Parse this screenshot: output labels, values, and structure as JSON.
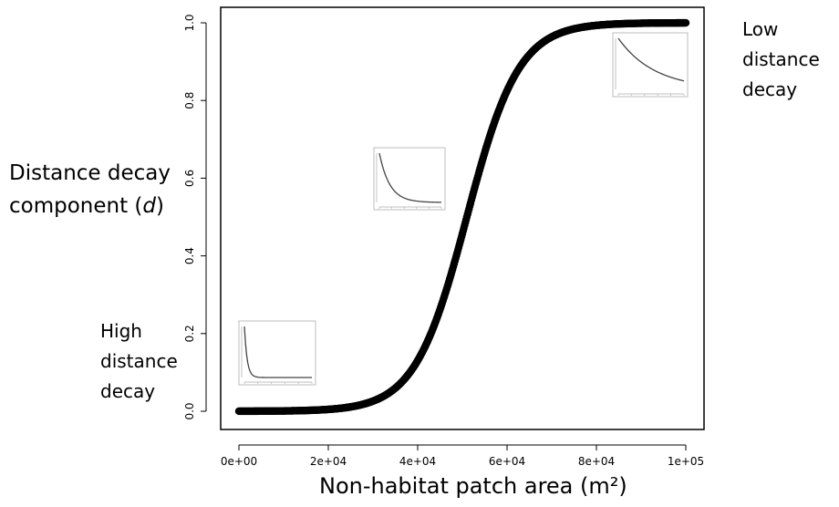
{
  "chart_data": {
    "type": "scatter",
    "xlabel_prefix": "Non-habitat patch area (m",
    "xlabel_sup": "²",
    "xlabel_suffix": ")",
    "ylabel_line1": "Distance decay",
    "ylabel_line2_prefix": "component (",
    "ylabel_symbol": "d",
    "ylabel_line2_suffix": ")",
    "xlim": [
      0,
      100000
    ],
    "ylim": [
      0,
      1
    ],
    "x_ticks": [
      0,
      20000,
      40000,
      60000,
      80000,
      100000
    ],
    "x_tick_labels": [
      "0e+00",
      "2e+04",
      "4e+04",
      "6e+04",
      "8e+04",
      "1e+05"
    ],
    "y_ticks": [
      0,
      0.2,
      0.4,
      0.6,
      0.8,
      1.0
    ],
    "y_tick_labels": [
      "0.0",
      "0.2",
      "0.4",
      "0.6",
      "0.8",
      "1.0"
    ],
    "curve": {
      "form": "logistic",
      "midpoint": 51000,
      "scale": 5800,
      "x_start": 0,
      "x_end": 100000
    },
    "grid": false,
    "annotations": {
      "low": [
        "Low",
        "distance",
        "decay"
      ],
      "high": [
        "High",
        "distance",
        "decay"
      ]
    },
    "insets": [
      {
        "name": "inset-high-decay",
        "decay_rate": 25,
        "near_x": 8000,
        "near_y": 0.11
      },
      {
        "name": "inset-mid-decay",
        "decay_rate": 6,
        "near_x": 37000,
        "near_y": 0.6
      },
      {
        "name": "inset-low-decay",
        "decay_rate": 1.8,
        "near_x": 90000,
        "near_y": 0.9
      }
    ]
  }
}
